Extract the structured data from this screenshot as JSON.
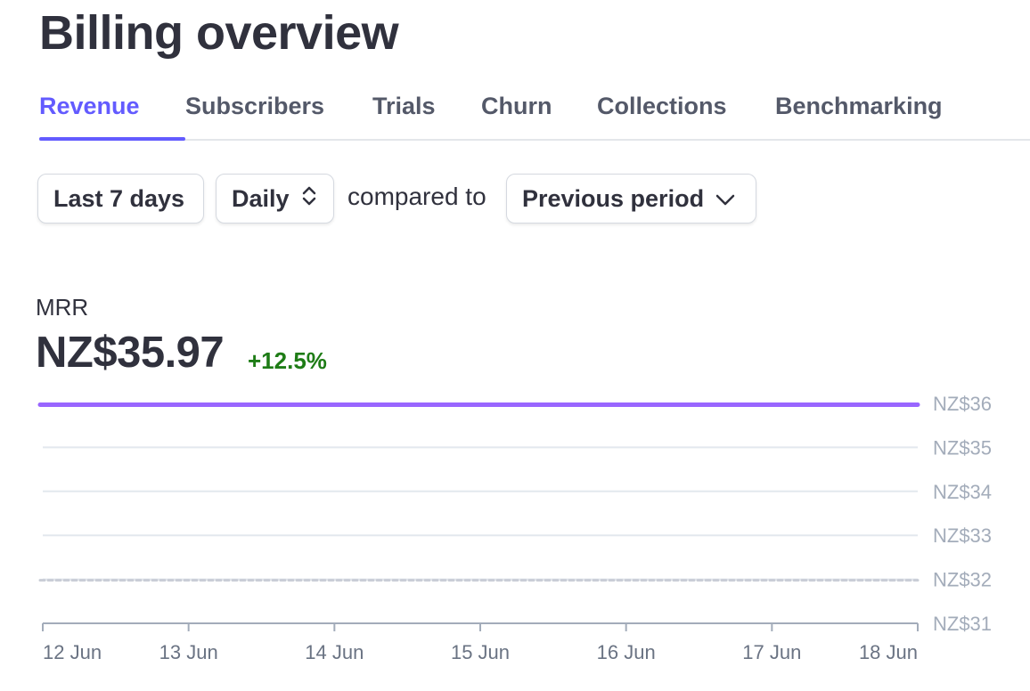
{
  "page_title": "Billing overview",
  "tabs": [
    {
      "label": "Revenue",
      "active": true
    },
    {
      "label": "Subscribers",
      "active": false
    },
    {
      "label": "Trials",
      "active": false
    },
    {
      "label": "Churn",
      "active": false
    },
    {
      "label": "Collections",
      "active": false
    },
    {
      "label": "Benchmarking",
      "active": false
    }
  ],
  "filters": {
    "range_label": "Last 7 days",
    "interval_label": "Daily",
    "compared_to_text": "compared to",
    "comparison_label": "Previous period"
  },
  "metric": {
    "label": "MRR",
    "value": "NZ$35.97",
    "delta": "+12.5%"
  },
  "colors": {
    "accent": "#635bff",
    "series_current": "#9966ff",
    "series_previous": "#c9cdd6",
    "positive": "#1e7c16",
    "gridline": "#e3e8ee",
    "axis_text": "#a3acba"
  },
  "icons": {
    "interval_select": "up-down-chevrons-icon",
    "comparison_select": "chevron-down-icon"
  },
  "chart_data": {
    "type": "line",
    "x": [
      "12 Jun",
      "13 Jun",
      "14 Jun",
      "15 Jun",
      "16 Jun",
      "17 Jun",
      "18 Jun"
    ],
    "series": [
      {
        "values": [
          35.97,
          35.97,
          35.97,
          35.97,
          35.97,
          35.97,
          35.97
        ],
        "style": "solid"
      },
      {
        "values": [
          31.98,
          31.98,
          31.98,
          31.98,
          31.98,
          31.98,
          31.98
        ],
        "style": "dashed"
      }
    ],
    "y_ticks": [
      "NZ$36",
      "NZ$35",
      "NZ$34",
      "NZ$33",
      "NZ$32",
      "NZ$31"
    ],
    "y_tick_values": [
      36,
      35,
      34,
      33,
      32,
      31
    ],
    "ylim": [
      31,
      36
    ],
    "grid": true,
    "y_axis_position": "right",
    "legend": "none"
  }
}
